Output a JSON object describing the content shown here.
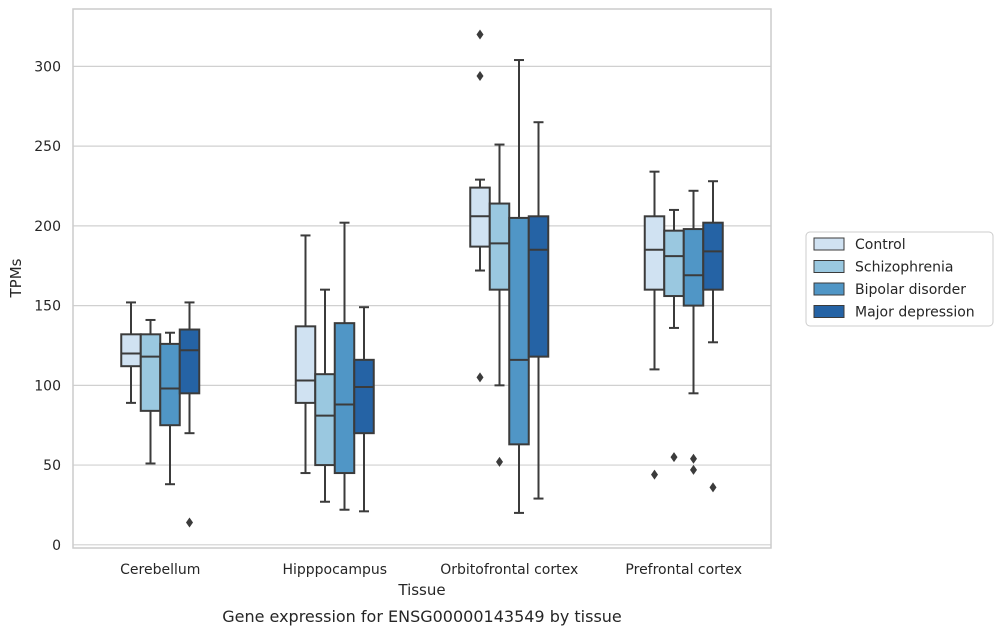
{
  "chart_data": {
    "type": "box",
    "title": "Gene expression for ENSG00000143549 by tissue",
    "xlabel": "Tissue",
    "ylabel": "TPMs",
    "ylim": [
      -2,
      336
    ],
    "yticks": [
      0,
      50,
      100,
      150,
      200,
      250,
      300
    ],
    "grid": true,
    "legend_position": "right",
    "categories": [
      "Cerebellum",
      "Hipppocampus",
      "Orbitofrontal cortex",
      "Prefrontal cortex"
    ],
    "series": [
      {
        "name": "Control",
        "color": "#d0e2f2",
        "boxes": [
          {
            "whislo": 89,
            "q1": 112,
            "med": 120,
            "q3": 132,
            "whishi": 152,
            "fliers": []
          },
          {
            "whislo": 45,
            "q1": 89,
            "med": 103,
            "q3": 137,
            "whishi": 194,
            "fliers": []
          },
          {
            "whislo": 172,
            "q1": 187,
            "med": 206,
            "q3": 224,
            "whishi": 229,
            "fliers": [
              105,
              294,
              320
            ]
          },
          {
            "whislo": 110,
            "q1": 160,
            "med": 185,
            "q3": 206,
            "whishi": 234,
            "fliers": [
              44
            ]
          }
        ]
      },
      {
        "name": "Schizophrenia",
        "color": "#9ac8e0",
        "boxes": [
          {
            "whislo": 51,
            "q1": 84,
            "med": 118,
            "q3": 132,
            "whishi": 141,
            "fliers": []
          },
          {
            "whislo": 27,
            "q1": 50,
            "med": 81,
            "q3": 107,
            "whishi": 160,
            "fliers": []
          },
          {
            "whislo": 100,
            "q1": 160,
            "med": 189,
            "q3": 214,
            "whishi": 251,
            "fliers": [
              52
            ]
          },
          {
            "whislo": 136,
            "q1": 156,
            "med": 181,
            "q3": 197,
            "whishi": 210,
            "fliers": [
              55
            ]
          }
        ]
      },
      {
        "name": "Bipolar disorder",
        "color": "#5096c6",
        "boxes": [
          {
            "whislo": 38,
            "q1": 75,
            "med": 98,
            "q3": 126,
            "whishi": 133,
            "fliers": []
          },
          {
            "whislo": 22,
            "q1": 45,
            "med": 88,
            "q3": 139,
            "whishi": 202,
            "fliers": []
          },
          {
            "whislo": 20,
            "q1": 63,
            "med": 116,
            "q3": 205,
            "whishi": 304,
            "fliers": []
          },
          {
            "whislo": 95,
            "q1": 150,
            "med": 169,
            "q3": 198,
            "whishi": 222,
            "fliers": [
              47,
              54
            ]
          }
        ]
      },
      {
        "name": "Major depression",
        "color": "#2563a5",
        "boxes": [
          {
            "whislo": 70,
            "q1": 95,
            "med": 122,
            "q3": 135,
            "whishi": 152,
            "fliers": [
              14
            ]
          },
          {
            "whislo": 21,
            "q1": 70,
            "med": 99,
            "q3": 116,
            "whishi": 149,
            "fliers": []
          },
          {
            "whislo": 29,
            "q1": 118,
            "med": 185,
            "q3": 206,
            "whishi": 265,
            "fliers": []
          },
          {
            "whislo": 127,
            "q1": 160,
            "med": 184,
            "q3": 202,
            "whishi": 228,
            "fliers": [
              36
            ]
          }
        ]
      }
    ]
  }
}
